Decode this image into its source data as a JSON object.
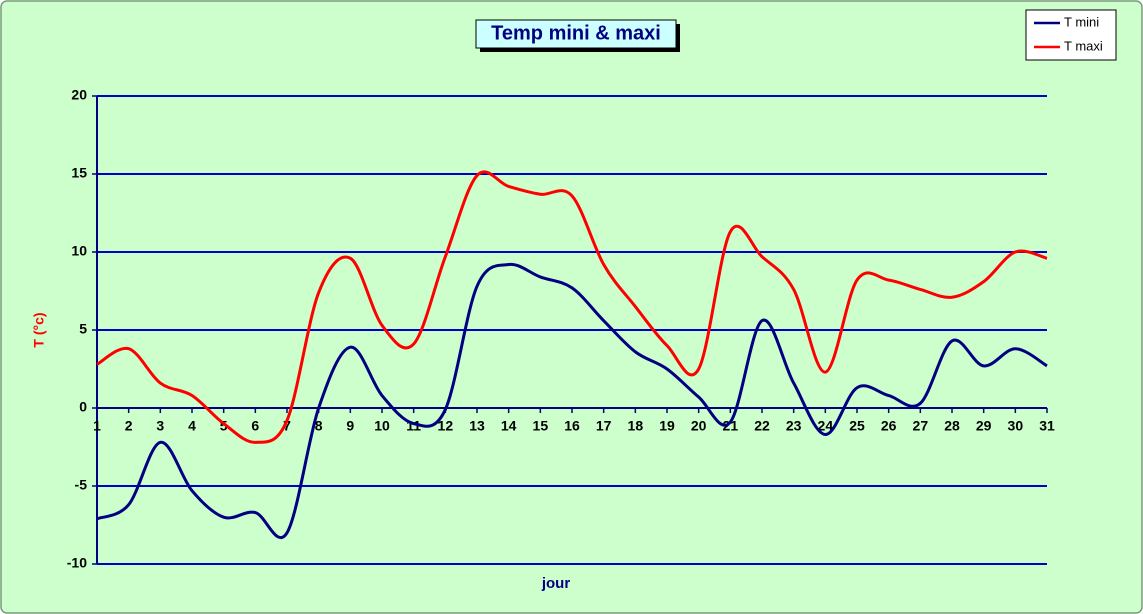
{
  "chart_data": {
    "type": "line",
    "title": "Temp mini & maxi",
    "x_label": "jour",
    "y_label": "T (°c)",
    "x": [
      1,
      2,
      3,
      4,
      5,
      6,
      7,
      8,
      9,
      10,
      11,
      12,
      13,
      14,
      15,
      16,
      17,
      18,
      19,
      20,
      21,
      22,
      23,
      24,
      25,
      26,
      27,
      28,
      29,
      30,
      31
    ],
    "xlim": [
      1,
      31
    ],
    "series": [
      {
        "name": "T mini",
        "color": "#000080",
        "values": [
          -7.1,
          -6.2,
          -2.2,
          -5.3,
          -7,
          -6.7,
          -8,
          0,
          3.9,
          0.8,
          -1,
          -0.1,
          7.8,
          9.2,
          8.4,
          7.7,
          5.6,
          3.6,
          2.5,
          0.7,
          -0.9,
          5.6,
          1.6,
          -1.7,
          1.3,
          0.8,
          0.3,
          4.3,
          2.7,
          3.8,
          2.7
        ]
      },
      {
        "name": "T maxi",
        "color": "#ff0000",
        "values": [
          2.8,
          3.8,
          1.6,
          0.8,
          -1,
          -2.2,
          -0.8,
          7.4,
          9.6,
          5.3,
          4.1,
          9.7,
          14.9,
          14.2,
          13.7,
          13.6,
          9.2,
          6.5,
          4,
          2.5,
          11.3,
          9.7,
          7.6,
          2.3,
          8.2,
          8.2,
          7.6,
          7.1,
          8.1,
          10,
          9.6
        ]
      }
    ],
    "ylim": [
      -10,
      20
    ],
    "yticks": [
      -10,
      -5,
      0,
      5,
      10,
      15,
      20
    ],
    "grid": true,
    "smooth": true,
    "legend": "top-right"
  }
}
